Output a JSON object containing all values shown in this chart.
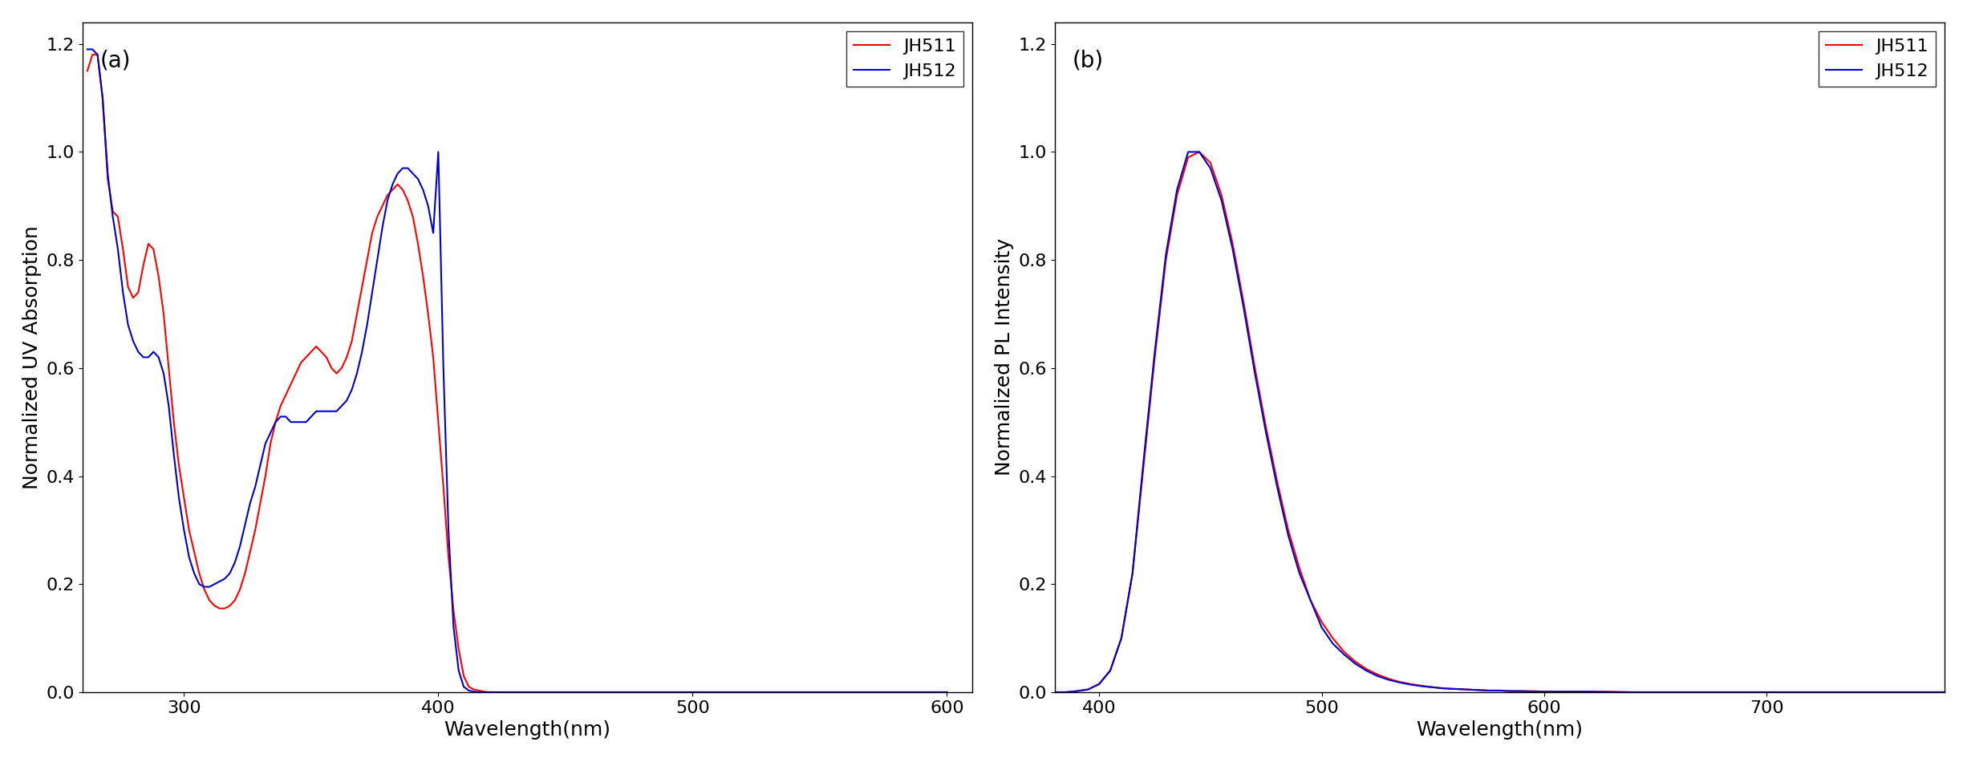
{
  "fig_width": 24.52,
  "fig_height": 9.5,
  "background_color": "#ffffff",
  "panel_a": {
    "label": "(a)",
    "xlabel": "Wavelength(nm)",
    "ylabel": "Normalized UV Absorption",
    "xlim": [
      260,
      610
    ],
    "ylim": [
      0.0,
      1.24
    ],
    "xticks": [
      300,
      400,
      500,
      600
    ],
    "yticks": [
      0.0,
      0.2,
      0.4,
      0.6,
      0.8,
      1.0,
      1.2
    ],
    "legend_labels": [
      "JH511",
      "JH512"
    ],
    "line_colors": [
      "#ff0000",
      "#0000cc"
    ],
    "line_width": 1.5,
    "JH511": {
      "x": [
        262,
        264,
        266,
        268,
        270,
        272,
        274,
        276,
        278,
        280,
        282,
        284,
        286,
        288,
        290,
        292,
        294,
        296,
        298,
        300,
        302,
        304,
        306,
        308,
        310,
        312,
        314,
        316,
        318,
        320,
        322,
        324,
        326,
        328,
        330,
        332,
        334,
        336,
        338,
        340,
        342,
        344,
        346,
        348,
        350,
        352,
        354,
        356,
        358,
        360,
        362,
        364,
        366,
        368,
        370,
        372,
        374,
        376,
        378,
        380,
        382,
        384,
        386,
        388,
        390,
        392,
        394,
        396,
        398,
        400,
        402,
        404,
        406,
        408,
        410,
        412,
        414,
        416,
        418,
        420,
        422,
        424,
        426,
        428,
        430,
        435,
        440,
        445,
        450,
        455,
        460,
        470,
        480,
        490,
        500,
        520,
        540,
        560,
        580,
        600
      ],
      "y": [
        1.15,
        1.18,
        1.18,
        1.1,
        0.95,
        0.89,
        0.88,
        0.82,
        0.75,
        0.73,
        0.74,
        0.79,
        0.83,
        0.82,
        0.77,
        0.7,
        0.6,
        0.5,
        0.42,
        0.36,
        0.3,
        0.26,
        0.22,
        0.19,
        0.17,
        0.16,
        0.155,
        0.155,
        0.16,
        0.17,
        0.19,
        0.22,
        0.26,
        0.3,
        0.35,
        0.4,
        0.46,
        0.5,
        0.53,
        0.55,
        0.57,
        0.59,
        0.61,
        0.62,
        0.63,
        0.64,
        0.63,
        0.62,
        0.6,
        0.59,
        0.6,
        0.62,
        0.65,
        0.7,
        0.75,
        0.8,
        0.85,
        0.88,
        0.9,
        0.92,
        0.93,
        0.94,
        0.93,
        0.91,
        0.88,
        0.83,
        0.77,
        0.7,
        0.62,
        0.5,
        0.38,
        0.25,
        0.15,
        0.08,
        0.03,
        0.01,
        0.005,
        0.003,
        0.001,
        0.0,
        0.0,
        0.0,
        0.0,
        0.0,
        0.0,
        0.0,
        0.0,
        0.0,
        0.0,
        0.0,
        0.0,
        0.0,
        0.0,
        0.0,
        0.0,
        0.0,
        0.0,
        0.0,
        0.0,
        0.0
      ]
    },
    "JH512": {
      "x": [
        262,
        264,
        266,
        268,
        270,
        272,
        274,
        276,
        278,
        280,
        282,
        284,
        286,
        288,
        290,
        292,
        294,
        296,
        298,
        300,
        302,
        304,
        306,
        308,
        310,
        312,
        314,
        316,
        318,
        320,
        322,
        324,
        326,
        328,
        330,
        332,
        334,
        336,
        338,
        340,
        342,
        344,
        346,
        348,
        350,
        352,
        354,
        356,
        358,
        360,
        362,
        364,
        366,
        368,
        370,
        372,
        374,
        376,
        378,
        380,
        382,
        384,
        386,
        388,
        390,
        392,
        394,
        396,
        398,
        400,
        402,
        404,
        406,
        408,
        410,
        412,
        414,
        416,
        418,
        420,
        422,
        424,
        426,
        428,
        430,
        435,
        440,
        445,
        450,
        455,
        460,
        470,
        480,
        490,
        500,
        520,
        540,
        560,
        580,
        600
      ],
      "y": [
        1.19,
        1.19,
        1.18,
        1.1,
        0.96,
        0.88,
        0.82,
        0.74,
        0.68,
        0.65,
        0.63,
        0.62,
        0.62,
        0.63,
        0.62,
        0.59,
        0.53,
        0.44,
        0.36,
        0.3,
        0.25,
        0.22,
        0.2,
        0.195,
        0.195,
        0.2,
        0.205,
        0.21,
        0.22,
        0.24,
        0.27,
        0.31,
        0.35,
        0.38,
        0.42,
        0.46,
        0.48,
        0.5,
        0.51,
        0.51,
        0.5,
        0.5,
        0.5,
        0.5,
        0.51,
        0.52,
        0.52,
        0.52,
        0.52,
        0.52,
        0.53,
        0.54,
        0.56,
        0.59,
        0.63,
        0.68,
        0.74,
        0.8,
        0.86,
        0.91,
        0.94,
        0.96,
        0.97,
        0.97,
        0.96,
        0.95,
        0.93,
        0.9,
        0.85,
        1.0,
        0.6,
        0.3,
        0.12,
        0.04,
        0.01,
        0.003,
        0.001,
        0.0,
        0.0,
        0.0,
        0.0,
        0.0,
        0.0,
        0.0,
        0.0,
        0.0,
        0.0,
        0.0,
        0.0,
        0.0,
        0.0,
        0.0,
        0.0,
        0.0,
        0.0,
        0.0,
        0.0,
        0.0,
        0.0,
        0.0
      ]
    }
  },
  "panel_b": {
    "label": "(b)",
    "xlabel": "Wavelength(nm)",
    "ylabel": "Normalized PL Intensity",
    "xlim": [
      380,
      780
    ],
    "ylim": [
      0.0,
      1.24
    ],
    "xticks": [
      400,
      500,
      600,
      700
    ],
    "yticks": [
      0.0,
      0.2,
      0.4,
      0.6,
      0.8,
      1.0,
      1.2
    ],
    "legend_labels": [
      "JH511",
      "JH512"
    ],
    "line_colors": [
      "#ff0000",
      "#0000cc"
    ],
    "line_width": 1.5,
    "JH511": {
      "x": [
        380,
        385,
        390,
        395,
        400,
        405,
        410,
        415,
        420,
        425,
        430,
        435,
        440,
        445,
        450,
        455,
        460,
        465,
        470,
        475,
        480,
        485,
        490,
        495,
        500,
        505,
        510,
        515,
        520,
        525,
        530,
        535,
        540,
        545,
        550,
        555,
        560,
        565,
        570,
        575,
        580,
        585,
        590,
        595,
        600,
        610,
        620,
        630,
        640,
        650,
        660,
        670,
        680,
        690,
        700,
        710,
        720,
        730,
        740,
        750,
        760,
        770,
        780
      ],
      "y": [
        0.0,
        0.0,
        0.002,
        0.005,
        0.015,
        0.04,
        0.1,
        0.22,
        0.42,
        0.62,
        0.8,
        0.92,
        0.99,
        1.0,
        0.98,
        0.92,
        0.83,
        0.72,
        0.6,
        0.49,
        0.39,
        0.3,
        0.23,
        0.17,
        0.13,
        0.1,
        0.075,
        0.057,
        0.043,
        0.033,
        0.025,
        0.019,
        0.015,
        0.012,
        0.009,
        0.007,
        0.006,
        0.005,
        0.004,
        0.003,
        0.003,
        0.002,
        0.002,
        0.002,
        0.001,
        0.001,
        0.001,
        0.001,
        0.0,
        0.0,
        0.0,
        0.0,
        0.0,
        0.0,
        0.0,
        0.0,
        0.0,
        0.0,
        0.0,
        0.0,
        0.0,
        0.0,
        0.0
      ]
    },
    "JH512": {
      "x": [
        380,
        385,
        390,
        395,
        400,
        405,
        410,
        415,
        420,
        425,
        430,
        435,
        440,
        445,
        450,
        455,
        460,
        465,
        470,
        475,
        480,
        485,
        490,
        495,
        500,
        505,
        510,
        515,
        520,
        525,
        530,
        535,
        540,
        545,
        550,
        555,
        560,
        565,
        570,
        575,
        580,
        585,
        590,
        595,
        600,
        610,
        620,
        630,
        640,
        650,
        660,
        670,
        680,
        690,
        700,
        710,
        720,
        730,
        740,
        750,
        760,
        770,
        780
      ],
      "y": [
        0.0,
        0.0,
        0.002,
        0.005,
        0.015,
        0.04,
        0.1,
        0.22,
        0.43,
        0.63,
        0.81,
        0.93,
        1.0,
        1.0,
        0.97,
        0.91,
        0.82,
        0.71,
        0.59,
        0.48,
        0.38,
        0.29,
        0.22,
        0.17,
        0.12,
        0.09,
        0.07,
        0.053,
        0.04,
        0.03,
        0.023,
        0.018,
        0.014,
        0.011,
        0.009,
        0.007,
        0.006,
        0.005,
        0.004,
        0.003,
        0.003,
        0.002,
        0.002,
        0.001,
        0.001,
        0.001,
        0.001,
        0.0,
        0.0,
        0.0,
        0.0,
        0.0,
        0.0,
        0.0,
        0.0,
        0.0,
        0.0,
        0.0,
        0.0,
        0.0,
        0.0,
        0.0,
        0.0
      ]
    }
  },
  "label_fontsize": 18,
  "tick_fontsize": 16,
  "legend_fontsize": 16,
  "panel_label_fontsize": 20
}
